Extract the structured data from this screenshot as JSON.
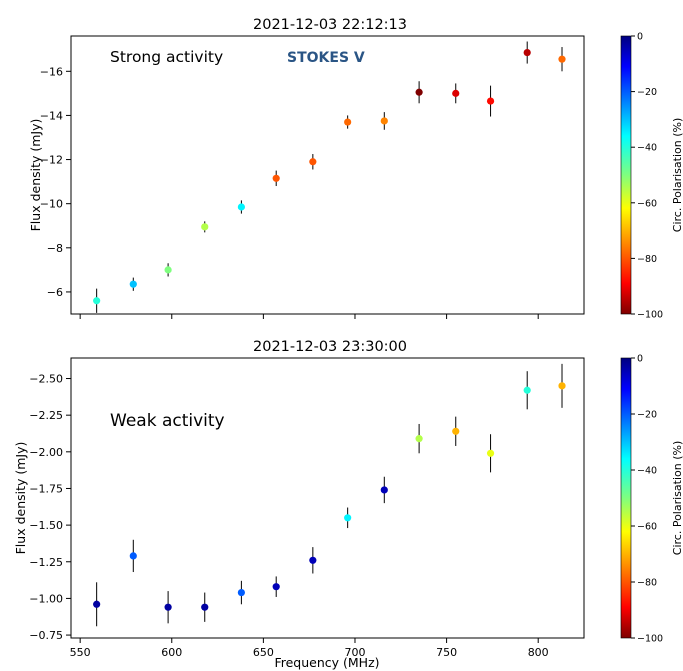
{
  "chart_data": [
    {
      "type": "scatter",
      "title": "2021-12-03 22:12:13",
      "annotations": [
        "Strong activity",
        "STOKES V"
      ],
      "xlabel": "",
      "ylabel": "Flux density (mJy)",
      "xlim": [
        545,
        825
      ],
      "ylim": [
        -5.0,
        -17.6
      ],
      "y_inverted": true,
      "x_ticks": [
        550,
        600,
        650,
        700,
        750,
        800
      ],
      "x_ticklabels": [
        "",
        "",
        "",
        "",
        "",
        ""
      ],
      "y_ticks": [
        -16,
        -14,
        -12,
        -10,
        -8,
        -6
      ],
      "y_ticklabels": [
        "−16",
        "−14",
        "−12",
        "−10",
        "−8",
        "−6"
      ],
      "colorbar": {
        "label": "Circ. Polarisation (%)",
        "range": [
          -100,
          0
        ],
        "ticks": [
          0,
          -20,
          -40,
          -60,
          -80,
          -100
        ],
        "ticklabels": [
          "0",
          "−20",
          "−40",
          "−60",
          "−80",
          "−100"
        ],
        "colormap": "jet_r"
      },
      "points": [
        {
          "x": 559,
          "y": -5.6,
          "err": 0.55,
          "pol": -40
        },
        {
          "x": 579,
          "y": -6.35,
          "err": 0.3,
          "pol": -30
        },
        {
          "x": 598,
          "y": -7.0,
          "err": 0.3,
          "pol": -50
        },
        {
          "x": 618,
          "y": -8.95,
          "err": 0.25,
          "pol": -55
        },
        {
          "x": 638,
          "y": -9.85,
          "err": 0.3,
          "pol": -35
        },
        {
          "x": 657,
          "y": -11.15,
          "err": 0.35,
          "pol": -80
        },
        {
          "x": 677,
          "y": -11.9,
          "err": 0.35,
          "pol": -80
        },
        {
          "x": 696,
          "y": -13.7,
          "err": 0.3,
          "pol": -78
        },
        {
          "x": 716,
          "y": -13.75,
          "err": 0.4,
          "pol": -75
        },
        {
          "x": 735,
          "y": -15.05,
          "err": 0.5,
          "pol": -100
        },
        {
          "x": 755,
          "y": -15.0,
          "err": 0.45,
          "pol": -92
        },
        {
          "x": 774,
          "y": -14.65,
          "err": 0.7,
          "pol": -88
        },
        {
          "x": 794,
          "y": -16.85,
          "err": 0.5,
          "pol": -95
        },
        {
          "x": 813,
          "y": -16.55,
          "err": 0.55,
          "pol": -78
        }
      ]
    },
    {
      "type": "scatter",
      "title": "2021-12-03 23:30:00",
      "annotations": [
        "Weak activity"
      ],
      "xlabel": "Frequency (MHz)",
      "ylabel": "Flux density (mJy)",
      "xlim": [
        545,
        825
      ],
      "ylim": [
        -0.73,
        -2.64
      ],
      "y_inverted": true,
      "x_ticks": [
        550,
        600,
        650,
        700,
        750,
        800
      ],
      "x_ticklabels": [
        "550",
        "600",
        "650",
        "700",
        "750",
        "800"
      ],
      "y_ticks": [
        -2.5,
        -2.25,
        -2.0,
        -1.75,
        -1.5,
        -1.25,
        -1.0,
        -0.75
      ],
      "y_ticklabels": [
        "−2.50",
        "−2.25",
        "−2.00",
        "−1.75",
        "−1.50",
        "−1.25",
        "−1.00",
        "−0.75"
      ],
      "colorbar": {
        "label": "Circ. Polarisation (%)",
        "range": [
          -100,
          0
        ],
        "ticks": [
          0,
          -20,
          -40,
          -60,
          -80,
          -100
        ],
        "ticklabels": [
          "0",
          "−20",
          "−40",
          "−60",
          "−80",
          "−100"
        ],
        "colormap": "jet_r"
      },
      "points": [
        {
          "x": 559,
          "y": -0.96,
          "err": 0.15,
          "pol": -3
        },
        {
          "x": 579,
          "y": -1.29,
          "err": 0.11,
          "pol": -20
        },
        {
          "x": 598,
          "y": -0.94,
          "err": 0.11,
          "pol": -3
        },
        {
          "x": 618,
          "y": -0.94,
          "err": 0.1,
          "pol": -3
        },
        {
          "x": 638,
          "y": -1.04,
          "err": 0.08,
          "pol": -20
        },
        {
          "x": 657,
          "y": -1.08,
          "err": 0.07,
          "pol": -5
        },
        {
          "x": 677,
          "y": -1.26,
          "err": 0.09,
          "pol": -5
        },
        {
          "x": 696,
          "y": -1.55,
          "err": 0.07,
          "pol": -35
        },
        {
          "x": 716,
          "y": -1.74,
          "err": 0.09,
          "pol": -5
        },
        {
          "x": 735,
          "y": -2.09,
          "err": 0.1,
          "pol": -55
        },
        {
          "x": 755,
          "y": -2.14,
          "err": 0.1,
          "pol": -70
        },
        {
          "x": 774,
          "y": -1.99,
          "err": 0.13,
          "pol": -60
        },
        {
          "x": 794,
          "y": -2.42,
          "err": 0.13,
          "pol": -40
        },
        {
          "x": 813,
          "y": -2.45,
          "err": 0.15,
          "pol": -70
        }
      ]
    }
  ]
}
